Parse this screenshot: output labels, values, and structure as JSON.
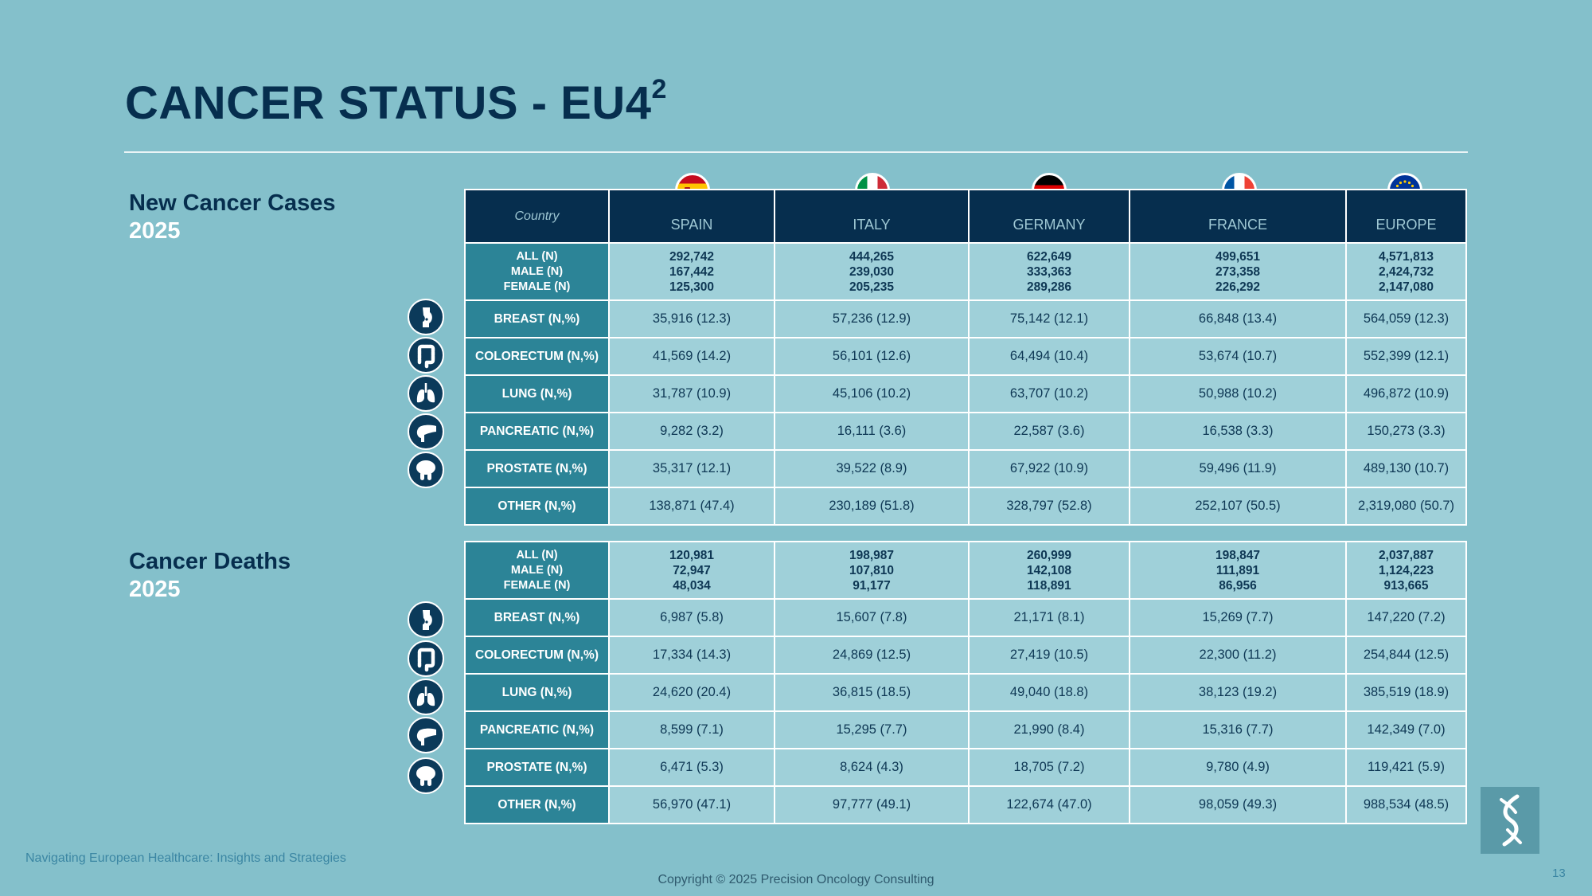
{
  "title": "CANCER STATUS - EU4",
  "title_superscript": "2",
  "sections": {
    "cases": {
      "line1": "New Cancer Cases",
      "line2": "2025"
    },
    "deaths": {
      "line1": "Cancer Deaths",
      "line2": "2025"
    }
  },
  "header": {
    "country_label": "Country",
    "columns": [
      "SPAIN",
      "ITALY",
      "GERMANY",
      "FRANCE",
      "EUROPE"
    ]
  },
  "row_labels": {
    "all": [
      "ALL (N)",
      "MALE (N)",
      "FEMALE (N)"
    ],
    "rows": [
      "BREAST (N,%)",
      "COLORECTUM (N,%)",
      "LUNG (N,%)",
      "PANCREATIC (N,%)",
      "PROSTATE (N,%)",
      "OTHER (N,%)"
    ]
  },
  "cases": {
    "all": [
      [
        "292,742",
        "167,442",
        "125,300"
      ],
      [
        "444,265",
        "239,030",
        "205,235"
      ],
      [
        "622,649",
        "333,363",
        "289,286"
      ],
      [
        "499,651",
        "273,358",
        "226,292"
      ],
      [
        "4,571,813",
        "2,424,732",
        "2,147,080"
      ]
    ],
    "rows": [
      [
        "35,916 (12.3)",
        "57,236 (12.9)",
        "75,142 (12.1)",
        "66,848 (13.4)",
        "564,059 (12.3)"
      ],
      [
        "41,569 (14.2)",
        "56,101 (12.6)",
        "64,494 (10.4)",
        "53,674 (10.7)",
        "552,399 (12.1)"
      ],
      [
        "31,787 (10.9)",
        "45,106 (10.2)",
        "63,707 (10.2)",
        "50,988 (10.2)",
        "496,872 (10.9)"
      ],
      [
        "9,282 (3.2)",
        "16,111 (3.6)",
        "22,587 (3.6)",
        "16,538 (3.3)",
        "150,273 (3.3)"
      ],
      [
        "35,317 (12.1)",
        "39,522 (8.9)",
        "67,922 (10.9)",
        "59,496 (11.9)",
        "489,130 (10.7)"
      ],
      [
        "138,871 (47.4)",
        "230,189 (51.8)",
        "328,797 (52.8)",
        "252,107 (50.5)",
        "2,319,080 (50.7)"
      ]
    ]
  },
  "deaths": {
    "all": [
      [
        "120,981",
        "72,947",
        "48,034"
      ],
      [
        "198,987",
        "107,810",
        "91,177"
      ],
      [
        "260,999",
        "142,108",
        "118,891"
      ],
      [
        "198,847",
        "111,891",
        "86,956"
      ],
      [
        "2,037,887",
        "1,124,223",
        "913,665"
      ]
    ],
    "rows": [
      [
        "6,987 (5.8)",
        "15,607 (7.8)",
        "21,171 (8.1)",
        "15,269 (7.7)",
        "147,220 (7.2)"
      ],
      [
        "17,334 (14.3)",
        "24,869 (12.5)",
        "27,419 (10.5)",
        "22,300 (11.2)",
        "254,844 (12.5)"
      ],
      [
        "24,620 (20.4)",
        "36,815 (18.5)",
        "49,040 (18.8)",
        "38,123 (19.2)",
        "385,519 (18.9)"
      ],
      [
        "8,599 (7.1)",
        "15,295 (7.7)",
        "21,990 (8.4)",
        "15,316 (7.7)",
        "142,349 (7.0)"
      ],
      [
        "6,471 (5.3)",
        "8,624 (4.3)",
        "18,705 (7.2)",
        "9,780 (4.9)",
        "119,421 (5.9)"
      ],
      [
        "56,970 (47.1)",
        "97,777 (49.1)",
        "122,674 (47.0)",
        "98,059 (49.3)",
        "988,534 (48.5)"
      ]
    ]
  },
  "icons": [
    "breast-icon",
    "colon-icon",
    "lungs-icon",
    "pancreas-icon",
    "prostate-icon"
  ],
  "flags": [
    "spain-flag-icon",
    "italy-flag-icon",
    "germany-flag-icon",
    "france-flag-icon",
    "eu-flag-icon"
  ],
  "footer": {
    "left": "Navigating European Healthcare: Insights and Strategies",
    "center": "Copyright © 2025 Precision Oncology Consulting",
    "page_number": "13"
  },
  "colors": {
    "background": "#84c0cb",
    "navy": "#062e4e",
    "row_label": "#2c8497",
    "cell": "#9fd0d9"
  }
}
